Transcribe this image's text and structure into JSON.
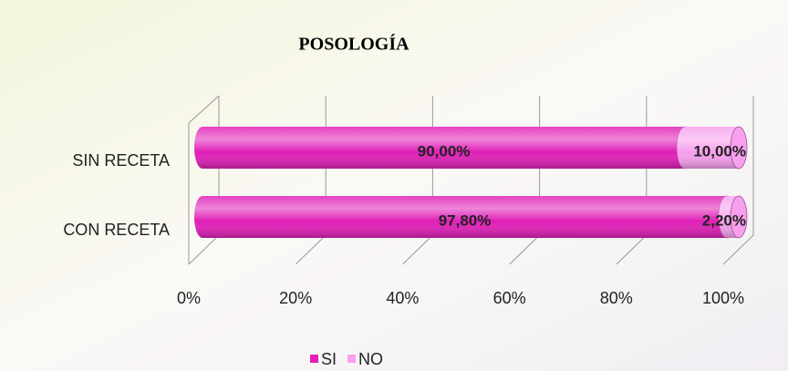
{
  "chart_data": {
    "type": "stacked-bar-horizontal",
    "title": "POSOLOGÍA",
    "categories": [
      "SIN RECETA",
      "CON RECETA"
    ],
    "series": [
      {
        "name": "SI",
        "color": "#e020b8",
        "values": [
          90,
          97.8
        ],
        "value_labels": [
          "90,00%",
          "97,80%"
        ]
      },
      {
        "name": "NO",
        "color": "#f7a0ee",
        "values": [
          10,
          2.2
        ],
        "value_labels": [
          "10,00%",
          "2,20%"
        ]
      }
    ],
    "xlim": [
      0,
      100
    ],
    "xticks": [
      {
        "value": 0,
        "label": "0%"
      },
      {
        "value": 20,
        "label": "20%"
      },
      {
        "value": 40,
        "label": "40%"
      },
      {
        "value": 60,
        "label": "60%"
      },
      {
        "value": 80,
        "label": "80%"
      },
      {
        "value": 100,
        "label": "100%"
      }
    ],
    "grid": true,
    "legend": "bottom"
  }
}
